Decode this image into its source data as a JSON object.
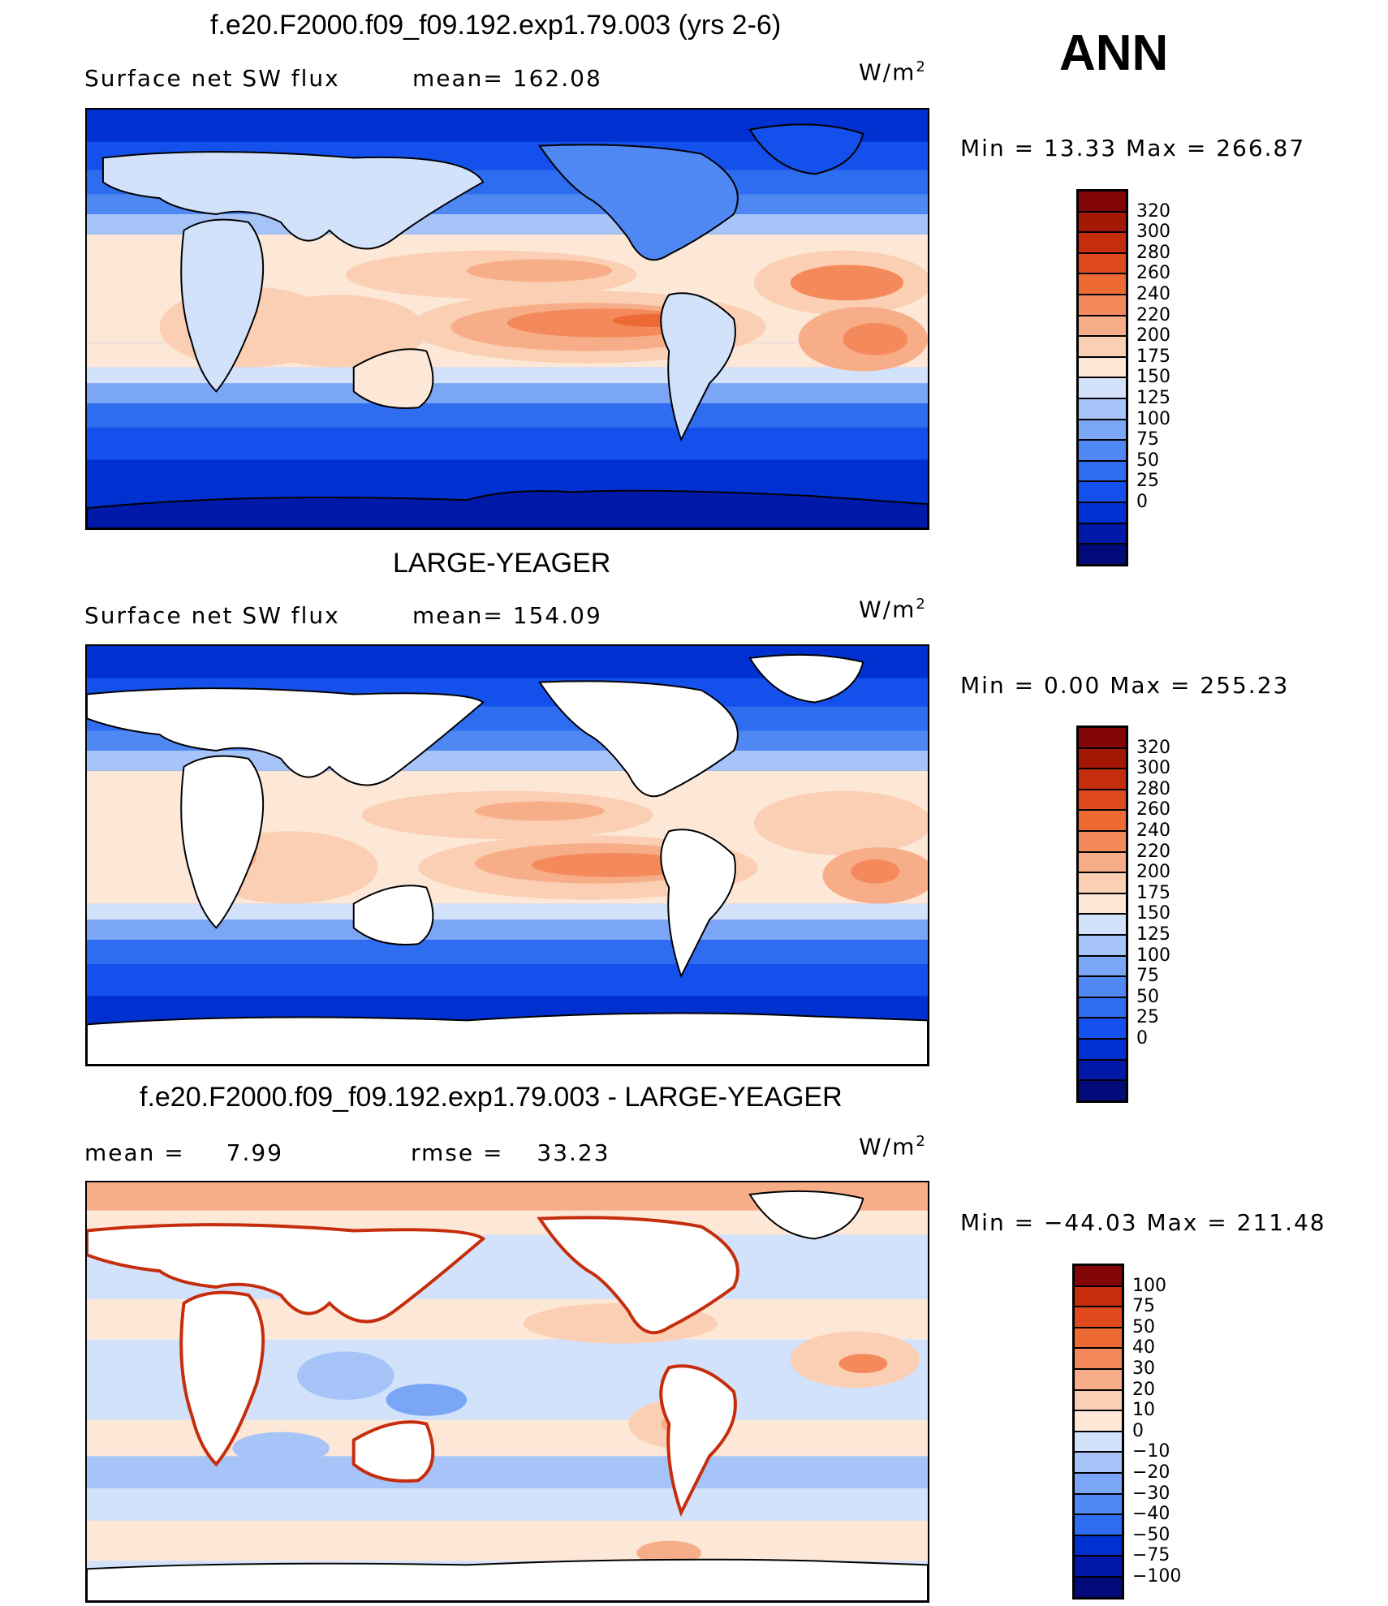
{
  "season": "ANN",
  "colors": {
    "abs": [
      "#020a7a",
      "#0019a8",
      "#0030d0",
      "#1450ec",
      "#2e6cf0",
      "#4f88f2",
      "#7aa6f5",
      "#a6c4f7",
      "#d2e2fb",
      "#fde8d8",
      "#fbcfb3",
      "#f7ae88",
      "#f48a5c",
      "#ee6a35",
      "#e04a1c",
      "#c62d0c",
      "#a51705",
      "#820606"
    ],
    "diff": [
      "#020a7a",
      "#0019a8",
      "#0030d0",
      "#2e6cf0",
      "#4f88f2",
      "#7aa6f5",
      "#a6c4f7",
      "#d2e2fb",
      "#fde8d8",
      "#fbcfb3",
      "#f7ae88",
      "#f48a5c",
      "#ee6a35",
      "#e04a1c",
      "#c62d0c",
      "#820606"
    ]
  },
  "panels": [
    {
      "title": "f.e20.F2000.f09_f09.192.exp1.79.003 (yrs 2-6)",
      "left_label": "Surface net SW flux",
      "stat_label": "mean=",
      "stat_value": "162.08",
      "units": "W/m",
      "units_sup": "2",
      "min_label": "Min =",
      "min_value": "13.33",
      "max_label": "Max =",
      "max_value": "266.87",
      "levels": [
        "320",
        "300",
        "280",
        "260",
        "240",
        "220",
        "200",
        "175",
        "150",
        "125",
        "100",
        "75",
        "50",
        "25",
        "0"
      ],
      "land_masked": false
    },
    {
      "title": "LARGE-YEAGER",
      "left_label": "Surface net SW flux",
      "stat_label": "mean=",
      "stat_value": "154.09",
      "units": "W/m",
      "units_sup": "2",
      "min_label": "Min =",
      "min_value": "0.00",
      "max_label": "Max =",
      "max_value": "255.23",
      "levels": [
        "320",
        "300",
        "280",
        "260",
        "240",
        "220",
        "200",
        "175",
        "150",
        "125",
        "100",
        "75",
        "50",
        "25",
        "0"
      ],
      "land_masked": true
    },
    {
      "title": "f.e20.F2000.f09_f09.192.exp1.79.003 - LARGE-YEAGER",
      "left_label": "mean =",
      "left_value": "7.99",
      "stat_label": "rmse =",
      "stat_value": "33.23",
      "units": "W/m",
      "units_sup": "2",
      "min_label": "Min =",
      "min_value": "−44.03",
      "max_label": "Max =",
      "max_value": "211.48",
      "levels": [
        "100",
        "75",
        "50",
        "40",
        "30",
        "20",
        "10",
        "0",
        "−10",
        "−20",
        "−30",
        "−40",
        "−50",
        "−75",
        "−100"
      ],
      "land_masked": true
    }
  ]
}
